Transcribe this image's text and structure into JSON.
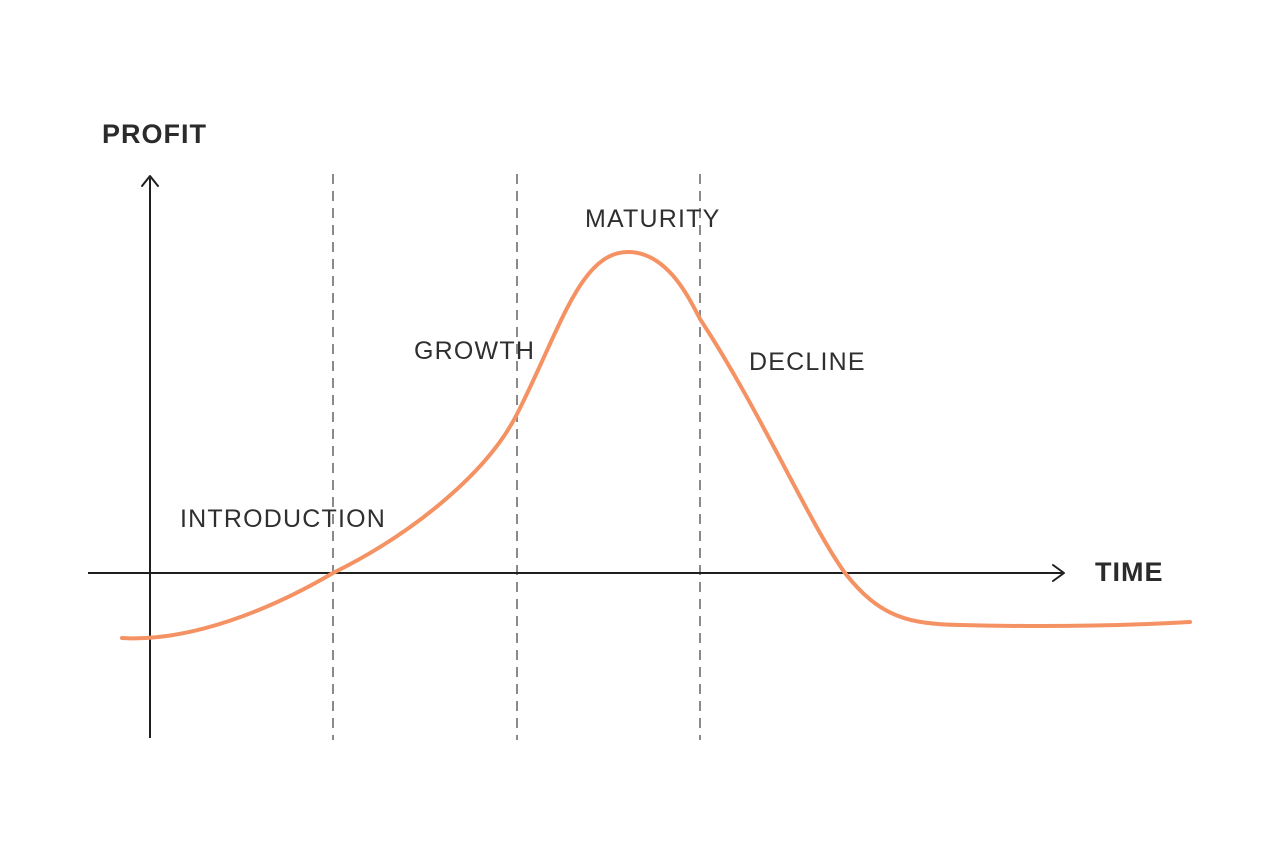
{
  "chart_data": {
    "type": "line",
    "ylabel": "PROFIT",
    "xlabel": "TIME",
    "stages": [
      "INTRODUCTION",
      "GROWTH",
      "MATURITY",
      "DECLINE"
    ],
    "colors": {
      "curve": "#f59263",
      "axes": "#1f1f1f",
      "dividers": "#8a8a8a",
      "text": "#2f2f2f"
    }
  }
}
